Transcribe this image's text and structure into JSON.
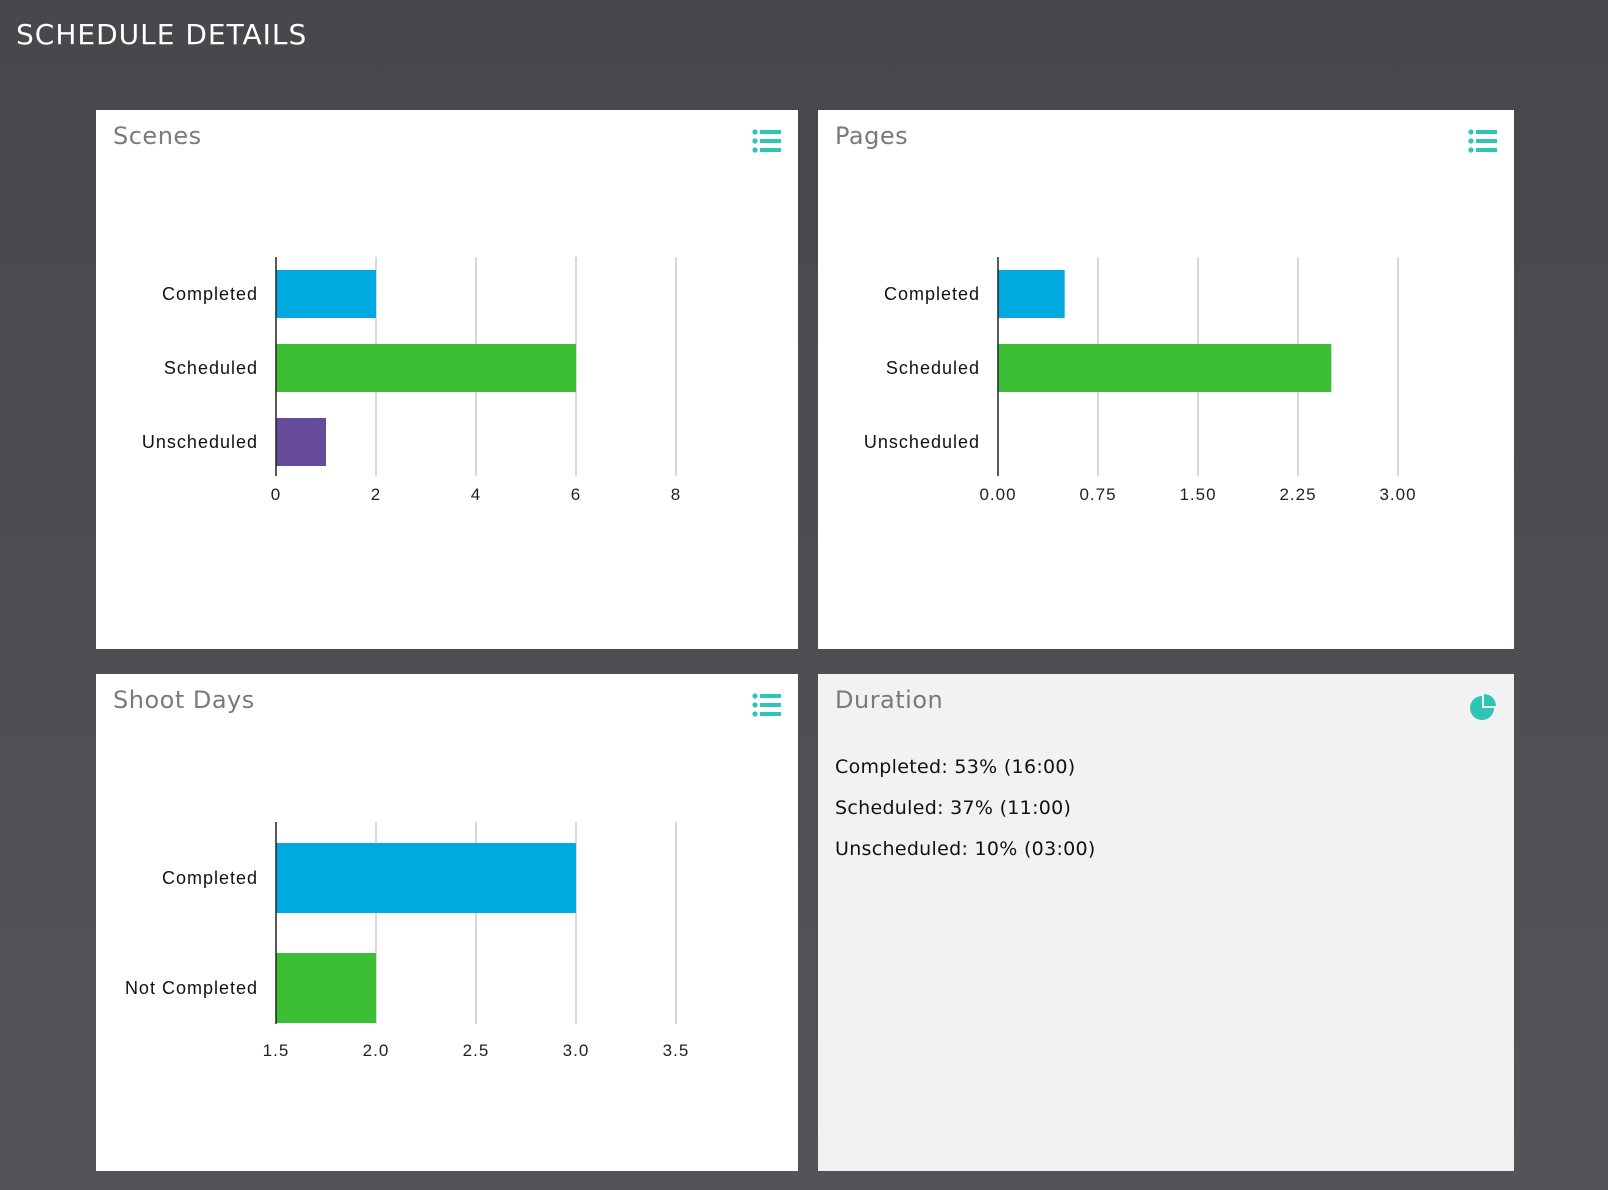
{
  "header": {
    "title": "SCHEDULE DETAILS"
  },
  "colors": {
    "accent": "#2ec4b6",
    "completed": "#00a9e0",
    "scheduled": "#3dbf35",
    "unscheduled": "#674b9b",
    "grid": "#cccccc"
  },
  "panels": {
    "scenes": {
      "title": "Scenes",
      "icon": "list-icon"
    },
    "pages": {
      "title": "Pages",
      "icon": "list-icon"
    },
    "shoot_days": {
      "title": "Shoot Days",
      "icon": "list-icon"
    },
    "duration": {
      "title": "Duration",
      "icon": "pie-chart-icon",
      "lines": [
        "Completed: 53% (16:00)",
        "Scheduled: 37% (11:00)",
        "Unscheduled: 10% (03:00)"
      ]
    }
  },
  "chart_data": [
    {
      "id": "scenes",
      "type": "bar",
      "orientation": "horizontal",
      "categories": [
        "Completed",
        "Scheduled",
        "Unscheduled"
      ],
      "values": [
        2,
        6,
        1
      ],
      "colors": [
        "#00a9e0",
        "#3dbf35",
        "#674b9b"
      ],
      "xlim": [
        0,
        8
      ],
      "xticks": [
        "0",
        "2",
        "4",
        "6",
        "8"
      ],
      "grid": true
    },
    {
      "id": "pages",
      "type": "bar",
      "orientation": "horizontal",
      "categories": [
        "Completed",
        "Scheduled",
        "Unscheduled"
      ],
      "values": [
        0.5,
        2.5,
        0
      ],
      "colors": [
        "#00a9e0",
        "#3dbf35",
        "#674b9b"
      ],
      "xlim": [
        0,
        3
      ],
      "xticks": [
        "0.00",
        "0.75",
        "1.50",
        "2.25",
        "3.00"
      ],
      "grid": true
    },
    {
      "id": "shoot_days",
      "type": "bar",
      "orientation": "horizontal",
      "categories": [
        "Completed",
        "Not Completed"
      ],
      "values": [
        3,
        2
      ],
      "colors": [
        "#00a9e0",
        "#3dbf35"
      ],
      "xlim": [
        1.5,
        3.5
      ],
      "xticks": [
        "1.5",
        "2.0",
        "2.5",
        "3.0",
        "3.5"
      ],
      "grid": true
    }
  ]
}
